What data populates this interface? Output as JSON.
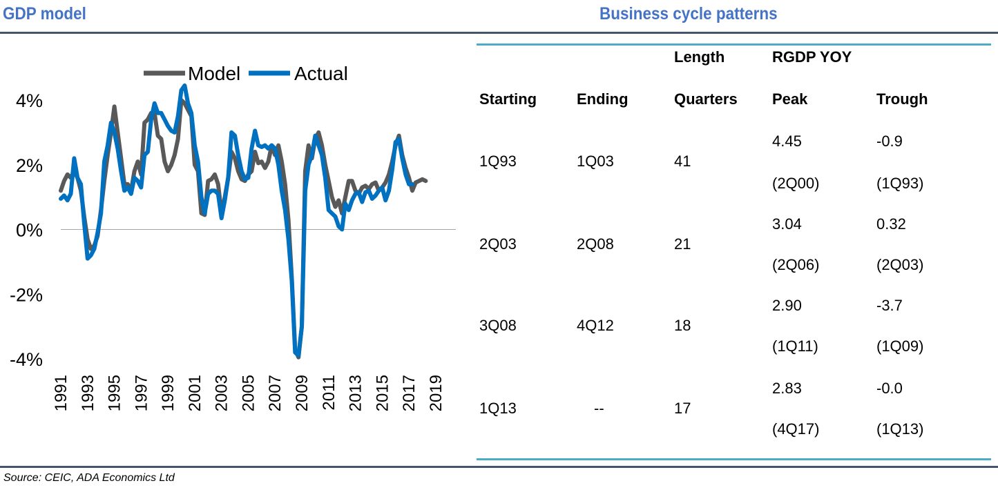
{
  "titles": {
    "left": "GDP model",
    "right": "Business cycle patterns"
  },
  "source": "Source: CEIC, ADA Economics Ltd",
  "colors": {
    "title": "#4472C4",
    "model": "#595959",
    "actual": "#0070C0",
    "table_rule": "#4BACC6",
    "rule": "#44546A"
  },
  "chart_data": {
    "type": "line",
    "title": "",
    "xlabel": "",
    "ylabel": "",
    "ylim": [
      -4.5,
      4.5
    ],
    "yticks": [
      4,
      2,
      0,
      -2,
      -4
    ],
    "ytick_labels": [
      "4%",
      "2%",
      "0%",
      "-2%",
      "-4%"
    ],
    "xticks": [
      "1991",
      "1993",
      "1995",
      "1997",
      "1999",
      "2001",
      "2003",
      "2005",
      "2007",
      "2009",
      "2011",
      "2013",
      "2015",
      "2017",
      "2019"
    ],
    "x_start": 1991.0,
    "x_end": 2020.5,
    "legend_position": "top",
    "series": [
      {
        "name": "Model",
        "color": "#595959",
        "points": [
          [
            1991,
            1.2
          ],
          [
            1991.25,
            1.5
          ],
          [
            1991.5,
            1.7
          ],
          [
            1991.75,
            1.6
          ],
          [
            1992,
            1.8
          ],
          [
            1992.25,
            1.6
          ],
          [
            1992.5,
            1.2
          ],
          [
            1992.75,
            0.4
          ],
          [
            1993,
            -0.3
          ],
          [
            1993.25,
            -0.6
          ],
          [
            1993.5,
            -0.5
          ],
          [
            1993.75,
            -0.2
          ],
          [
            1994,
            0.6
          ],
          [
            1994.25,
            1.5
          ],
          [
            1994.5,
            2.3
          ],
          [
            1994.75,
            3.0
          ],
          [
            1995,
            3.8
          ],
          [
            1995.25,
            3.0
          ],
          [
            1995.5,
            2.2
          ],
          [
            1995.75,
            1.4
          ],
          [
            1996,
            1.4
          ],
          [
            1996.25,
            1.2
          ],
          [
            1996.5,
            1.8
          ],
          [
            1996.75,
            2.1
          ],
          [
            1997,
            1.7
          ],
          [
            1997.25,
            3.3
          ],
          [
            1997.5,
            3.4
          ],
          [
            1997.75,
            3.6
          ],
          [
            1998,
            3.6
          ],
          [
            1998.25,
            2.9
          ],
          [
            1998.5,
            2.8
          ],
          [
            1998.75,
            2.1
          ],
          [
            1999,
            1.8
          ],
          [
            1999.25,
            2.0
          ],
          [
            1999.5,
            2.3
          ],
          [
            1999.75,
            2.8
          ],
          [
            2000,
            4.0
          ],
          [
            2000.25,
            3.9
          ],
          [
            2000.5,
            3.7
          ],
          [
            2000.75,
            3.5
          ],
          [
            2001,
            2.0
          ],
          [
            2001.25,
            1.8
          ],
          [
            2001.5,
            0.5
          ],
          [
            2001.75,
            0.45
          ],
          [
            2002,
            1.5
          ],
          [
            2002.25,
            1.55
          ],
          [
            2002.5,
            1.7
          ],
          [
            2002.75,
            1.4
          ],
          [
            2003,
            0.5
          ],
          [
            2003.25,
            1.0
          ],
          [
            2003.5,
            1.6
          ],
          [
            2003.75,
            2.4
          ],
          [
            2004,
            2.2
          ],
          [
            2004.25,
            1.8
          ],
          [
            2004.5,
            1.55
          ],
          [
            2004.75,
            1.5
          ],
          [
            2005,
            1.7
          ],
          [
            2005.25,
            1.8
          ],
          [
            2005.5,
            2.4
          ],
          [
            2005.75,
            2.05
          ],
          [
            2006,
            2.1
          ],
          [
            2006.25,
            1.9
          ],
          [
            2006.5,
            2.1
          ],
          [
            2006.75,
            2.6
          ],
          [
            2007,
            2.3
          ],
          [
            2007.25,
            2.6
          ],
          [
            2007.5,
            2.1
          ],
          [
            2007.75,
            1.4
          ],
          [
            2008,
            0.3
          ],
          [
            2008.25,
            -1.5
          ],
          [
            2008.5,
            -3.7
          ],
          [
            2008.75,
            -3.95
          ],
          [
            2009,
            -3.0
          ],
          [
            2009.25,
            1.8
          ],
          [
            2009.5,
            2.6
          ],
          [
            2009.75,
            2.2
          ],
          [
            2010,
            2.8
          ],
          [
            2010.25,
            3.0
          ],
          [
            2010.5,
            2.6
          ],
          [
            2010.75,
            2.0
          ],
          [
            2011,
            1.5
          ],
          [
            2011.25,
            1.0
          ],
          [
            2011.5,
            0.7
          ],
          [
            2011.75,
            0.9
          ],
          [
            2012,
            0.5
          ],
          [
            2012.25,
            1.0
          ],
          [
            2012.5,
            1.5
          ],
          [
            2012.75,
            1.5
          ],
          [
            2013,
            1.2
          ],
          [
            2013.25,
            1.1
          ],
          [
            2013.5,
            1.3
          ],
          [
            2013.75,
            1.35
          ],
          [
            2014,
            1.25
          ],
          [
            2014.25,
            1.4
          ],
          [
            2014.5,
            1.45
          ],
          [
            2014.75,
            1.2
          ],
          [
            2015,
            1.3
          ],
          [
            2015.25,
            1.45
          ],
          [
            2015.5,
            1.7
          ],
          [
            2015.75,
            2.1
          ],
          [
            2016,
            2.6
          ],
          [
            2016.25,
            2.9
          ],
          [
            2016.5,
            2.3
          ],
          [
            2016.75,
            1.9
          ],
          [
            2017,
            1.6
          ],
          [
            2017.25,
            1.2
          ],
          [
            2017.5,
            1.45
          ],
          [
            2017.75,
            1.5
          ],
          [
            2018,
            1.55
          ],
          [
            2018.25,
            1.5
          ]
        ]
      },
      {
        "name": "Actual",
        "color": "#0070C0",
        "points": [
          [
            1991,
            0.95
          ],
          [
            1991.25,
            1.05
          ],
          [
            1991.5,
            0.9
          ],
          [
            1991.75,
            1.1
          ],
          [
            1992,
            2.2
          ],
          [
            1992.25,
            1.6
          ],
          [
            1992.5,
            1.4
          ],
          [
            1992.75,
            0.2
          ],
          [
            1993,
            -0.9
          ],
          [
            1993.25,
            -0.8
          ],
          [
            1993.5,
            -0.6
          ],
          [
            1993.75,
            -0.1
          ],
          [
            1994,
            0.5
          ],
          [
            1994.25,
            2.1
          ],
          [
            1994.5,
            2.6
          ],
          [
            1994.75,
            3.3
          ],
          [
            1995,
            3.0
          ],
          [
            1995.25,
            2.5
          ],
          [
            1995.5,
            1.8
          ],
          [
            1995.75,
            1.2
          ],
          [
            1996,
            1.3
          ],
          [
            1996.25,
            1.1
          ],
          [
            1996.5,
            1.6
          ],
          [
            1996.75,
            1.5
          ],
          [
            1997,
            1.3
          ],
          [
            1997.25,
            2.3
          ],
          [
            1997.5,
            2.4
          ],
          [
            1997.75,
            3.4
          ],
          [
            1998,
            3.9
          ],
          [
            1998.25,
            3.6
          ],
          [
            1998.5,
            3.6
          ],
          [
            1998.75,
            3.4
          ],
          [
            1999,
            3.2
          ],
          [
            1999.25,
            3.05
          ],
          [
            1999.5,
            3.0
          ],
          [
            1999.75,
            3.5
          ],
          [
            2000,
            4.3
          ],
          [
            2000.25,
            4.45
          ],
          [
            2000.5,
            3.9
          ],
          [
            2000.75,
            3.6
          ],
          [
            2001,
            2.6
          ],
          [
            2001.25,
            2.1
          ],
          [
            2001.5,
            1.0
          ],
          [
            2001.75,
            0.5
          ],
          [
            2002,
            1.1
          ],
          [
            2002.25,
            1.2
          ],
          [
            2002.5,
            1.2
          ],
          [
            2002.75,
            1.1
          ],
          [
            2003,
            0.35
          ],
          [
            2003.25,
            0.9
          ],
          [
            2003.5,
            1.6
          ],
          [
            2003.75,
            3.0
          ],
          [
            2004,
            2.9
          ],
          [
            2004.25,
            2.3
          ],
          [
            2004.5,
            1.8
          ],
          [
            2004.75,
            1.55
          ],
          [
            2005,
            1.6
          ],
          [
            2005.25,
            2.5
          ],
          [
            2005.5,
            3.05
          ],
          [
            2005.75,
            2.6
          ],
          [
            2006,
            2.55
          ],
          [
            2006.25,
            2.6
          ],
          [
            2006.5,
            2.5
          ],
          [
            2006.75,
            2.6
          ],
          [
            2007,
            2.5
          ],
          [
            2007.25,
            2.0
          ],
          [
            2007.5,
            1.2
          ],
          [
            2007.75,
            0.6
          ],
          [
            2008,
            -0.3
          ],
          [
            2008.25,
            -1.6
          ],
          [
            2008.5,
            -3.8
          ],
          [
            2008.75,
            -3.9
          ],
          [
            2009,
            -3.0
          ],
          [
            2009.25,
            1.2
          ],
          [
            2009.5,
            2.0
          ],
          [
            2009.75,
            2.3
          ],
          [
            2010,
            2.9
          ],
          [
            2010.25,
            2.6
          ],
          [
            2010.5,
            2.3
          ],
          [
            2010.75,
            1.6
          ],
          [
            2011,
            0.6
          ],
          [
            2011.25,
            0.5
          ],
          [
            2011.5,
            0.4
          ],
          [
            2011.75,
            0.1
          ],
          [
            2012,
            0.0
          ],
          [
            2012.25,
            0.8
          ],
          [
            2012.5,
            0.6
          ],
          [
            2012.75,
            0.9
          ],
          [
            2013,
            1.1
          ],
          [
            2013.25,
            1.15
          ],
          [
            2013.5,
            0.85
          ],
          [
            2013.75,
            1.15
          ],
          [
            2014,
            1.2
          ],
          [
            2014.25,
            0.95
          ],
          [
            2014.5,
            1.05
          ],
          [
            2014.75,
            1.2
          ],
          [
            2015,
            1.3
          ],
          [
            2015.25,
            0.9
          ],
          [
            2015.5,
            1.2
          ],
          [
            2015.75,
            1.85
          ],
          [
            2016,
            2.7
          ],
          [
            2016.25,
            2.8
          ],
          [
            2016.5,
            2.2
          ],
          [
            2016.75,
            1.7
          ],
          [
            2017,
            1.4
          ],
          [
            2017.25,
            1.4
          ]
        ]
      }
    ]
  },
  "table": {
    "headers_top": [
      "",
      "",
      "Length",
      "RGDP YOY",
      ""
    ],
    "headers": [
      "Starting",
      "Ending",
      "Quarters",
      "Peak",
      "Trough"
    ],
    "rows": [
      {
        "starting": "1Q93",
        "ending": "1Q03",
        "quarters": "41",
        "peak": "4.45",
        "peak_date": "(2Q00)",
        "trough": "-0.9",
        "trough_date": "(1Q93)"
      },
      {
        "starting": "2Q03",
        "ending": "2Q08",
        "quarters": "21",
        "peak": "3.04",
        "peak_date": "(2Q06)",
        "trough": "0.32",
        "trough_date": "(2Q03)"
      },
      {
        "starting": "3Q08",
        "ending": "4Q12",
        "quarters": "18",
        "peak": "2.90",
        "peak_date": "(1Q11)",
        "trough": "-3.7",
        "trough_date": "(1Q09)"
      },
      {
        "starting": "1Q13",
        "ending": "--",
        "quarters": "17",
        "peak": "2.83",
        "peak_date": "(4Q17)",
        "trough": "-0.0",
        "trough_date": "(1Q13)"
      }
    ]
  }
}
